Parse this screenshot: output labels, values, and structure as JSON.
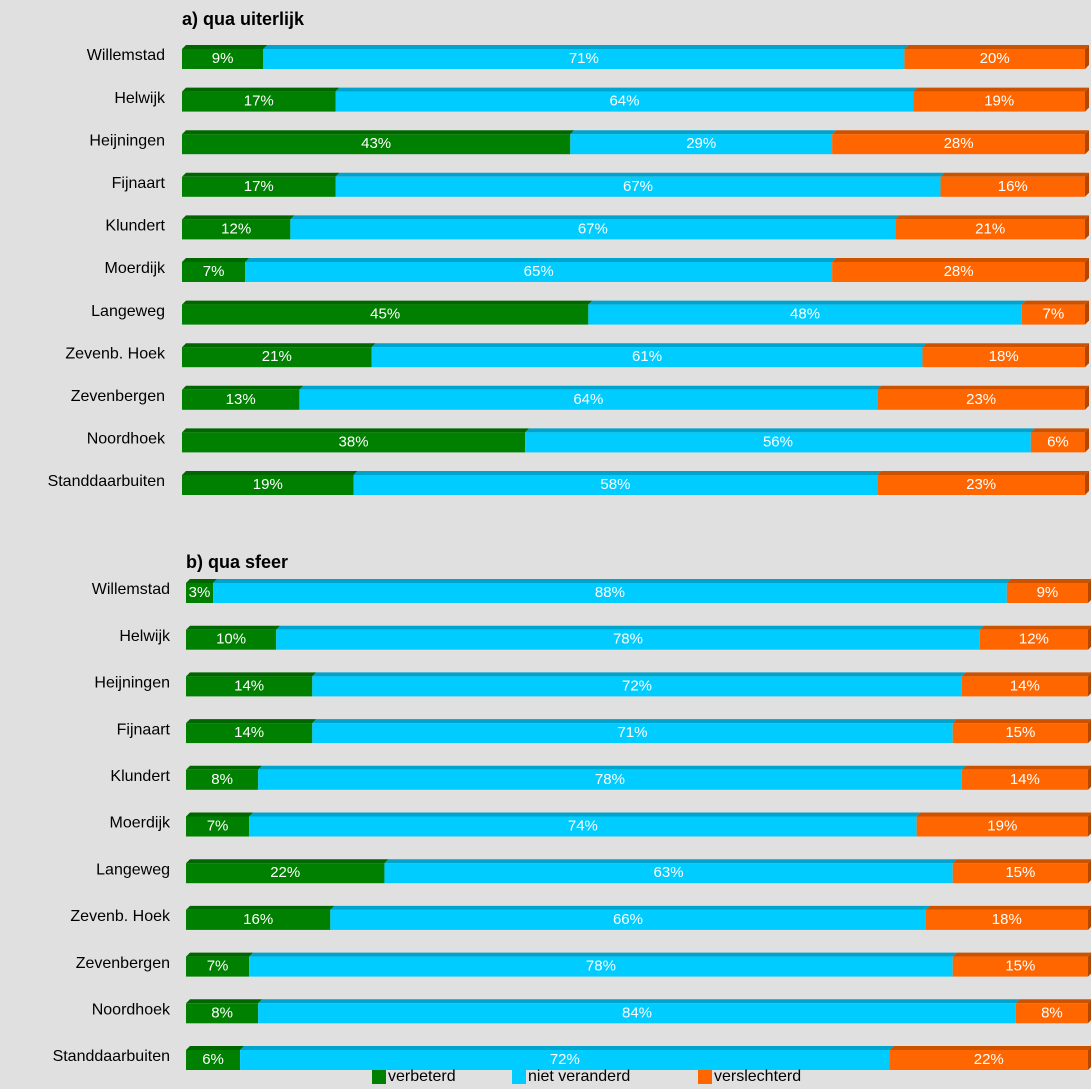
{
  "chart_data": [
    {
      "type": "stacked-bar",
      "title": "a) qua uiterlijk",
      "categories": [
        "Willemstad",
        "Helwijk",
        "Heijningen",
        "Fijnaart",
        "Klundert",
        "Moerdijk",
        "Langeweg",
        "Zevenb. Hoek",
        "Zevenbergen",
        "Noordhoek",
        "Standdaarbuiten"
      ],
      "xlim": [
        0,
        100
      ],
      "series": [
        {
          "name": "verbeterd",
          "color": "#008000",
          "values": [
            9,
            17,
            43,
            17,
            12,
            7,
            45,
            21,
            13,
            38,
            19
          ],
          "value_labels": [
            "9%",
            "17%",
            "43%",
            "17%",
            "12%",
            "7%",
            "45%",
            "21%",
            "13%",
            "38%",
            "19%"
          ]
        },
        {
          "name": "niet veranderd",
          "color": "#00ccff",
          "values": [
            71,
            64,
            29,
            67,
            67,
            65,
            48,
            61,
            64,
            56,
            58
          ],
          "value_labels": [
            "71%",
            "64%",
            "29%",
            "67%",
            "67%",
            "65%",
            "48%",
            "61%",
            "64%",
            "56%",
            "58%"
          ]
        },
        {
          "name": "verslechterd",
          "color": "#ff6600",
          "values": [
            20,
            19,
            28,
            16,
            21,
            28,
            7,
            18,
            23,
            6,
            23
          ],
          "value_labels": [
            "20%",
            "19%",
            "28%",
            "16%",
            "21%",
            "28%",
            "7%",
            "18%",
            "23%",
            "6%",
            "23%"
          ]
        }
      ]
    },
    {
      "type": "stacked-bar",
      "title": "b) qua sfeer",
      "categories": [
        "Willemstad",
        "Helwijk",
        "Heijningen",
        "Fijnaart",
        "Klundert",
        "Moerdijk",
        "Langeweg",
        "Zevenb. Hoek",
        "Zevenbergen",
        "Noordhoek",
        "Standdaarbuiten"
      ],
      "xlim": [
        0,
        100
      ],
      "series": [
        {
          "color": "#008000",
          "values": [
            3,
            10,
            14,
            14,
            8,
            7,
            22,
            16,
            7,
            8,
            6
          ],
          "value_labels": [
            "3%",
            "10%",
            "14%",
            "14%",
            "8%",
            "7%",
            "22%",
            "16%",
            "7%",
            "8%",
            "6%"
          ]
        },
        {
          "color": "#00ccff",
          "values": [
            88,
            78,
            72,
            71,
            78,
            74,
            63,
            66,
            78,
            84,
            72
          ],
          "value_labels": [
            "88%",
            "78%",
            "72%",
            "71%",
            "78%",
            "74%",
            "63%",
            "66%",
            "78%",
            "84%",
            "72%"
          ]
        },
        {
          "color": "#ff6600",
          "values": [
            9,
            12,
            14,
            15,
            14,
            19,
            15,
            18,
            15,
            8,
            22
          ],
          "value_labels": [
            "9%",
            "12%",
            "14%",
            "15%",
            "14%",
            "19%",
            "15%",
            "18%",
            "15%",
            "8%",
            "22%"
          ]
        }
      ]
    }
  ]
}
